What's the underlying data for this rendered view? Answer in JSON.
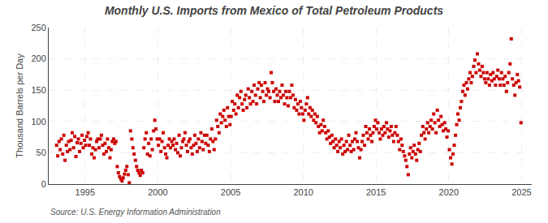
{
  "chart_data": {
    "type": "scatter",
    "title": "Monthly U.S. Imports from Mexico of Total Petroleum Products",
    "ylabel": "Thousand Barrels per Day",
    "source": "Source: U.S. Energy Information Administration",
    "color": "#cc0000",
    "marker": "square",
    "grid": true,
    "xlim": [
      1992.5,
      2025.7
    ],
    "xticks": [
      1995,
      2000,
      2005,
      2010,
      2015,
      2020,
      2025
    ],
    "ylim": [
      0,
      250
    ],
    "yticks": [
      0,
      50,
      100,
      150,
      200,
      250
    ],
    "x": [
      1993.04,
      1993.12,
      1993.21,
      1993.29,
      1993.37,
      1993.46,
      1993.54,
      1993.62,
      1993.71,
      1993.79,
      1993.87,
      1993.96,
      1994.04,
      1994.12,
      1994.21,
      1994.29,
      1994.37,
      1994.46,
      1994.54,
      1994.62,
      1994.71,
      1994.79,
      1994.87,
      1994.96,
      1995.04,
      1995.12,
      1995.21,
      1995.29,
      1995.37,
      1995.46,
      1995.54,
      1995.62,
      1995.71,
      1995.79,
      1995.87,
      1995.96,
      1996.04,
      1996.12,
      1996.21,
      1996.29,
      1996.37,
      1996.46,
      1996.54,
      1996.62,
      1996.71,
      1996.79,
      1996.87,
      1996.96,
      1997.04,
      1997.12,
      1997.21,
      1997.29,
      1997.37,
      1997.46,
      1997.54,
      1997.62,
      1997.71,
      1997.79,
      1997.87,
      1997.96,
      1998.04,
      1998.12,
      1998.21,
      1998.29,
      1998.37,
      1998.46,
      1998.54,
      1998.62,
      1998.71,
      1998.79,
      1998.87,
      1998.96,
      1999.04,
      1999.12,
      1999.21,
      1999.29,
      1999.37,
      1999.46,
      1999.54,
      1999.62,
      1999.71,
      1999.79,
      1999.87,
      1999.96,
      2000.04,
      2000.12,
      2000.21,
      2000.29,
      2000.37,
      2000.46,
      2000.54,
      2000.62,
      2000.71,
      2000.79,
      2000.87,
      2000.96,
      2001.04,
      2001.12,
      2001.21,
      2001.29,
      2001.37,
      2001.46,
      2001.54,
      2001.62,
      2001.71,
      2001.79,
      2001.87,
      2001.96,
      2002.04,
      2002.12,
      2002.21,
      2002.29,
      2002.37,
      2002.46,
      2002.54,
      2002.62,
      2002.71,
      2002.79,
      2002.87,
      2002.96,
      2003.04,
      2003.12,
      2003.21,
      2003.29,
      2003.37,
      2003.46,
      2003.54,
      2003.62,
      2003.71,
      2003.79,
      2003.87,
      2003.96,
      2004.04,
      2004.12,
      2004.21,
      2004.29,
      2004.37,
      2004.46,
      2004.54,
      2004.62,
      2004.71,
      2004.79,
      2004.87,
      2004.96,
      2005.04,
      2005.12,
      2005.21,
      2005.29,
      2005.37,
      2005.46,
      2005.54,
      2005.62,
      2005.71,
      2005.79,
      2005.87,
      2005.96,
      2006.04,
      2006.12,
      2006.21,
      2006.29,
      2006.37,
      2006.46,
      2006.54,
      2006.62,
      2006.71,
      2006.79,
      2006.87,
      2006.96,
      2007.04,
      2007.12,
      2007.21,
      2007.29,
      2007.37,
      2007.46,
      2007.54,
      2007.62,
      2007.71,
      2007.79,
      2007.87,
      2007.96,
      2008.04,
      2008.12,
      2008.21,
      2008.29,
      2008.37,
      2008.46,
      2008.54,
      2008.62,
      2008.71,
      2008.79,
      2008.87,
      2008.96,
      2009.04,
      2009.12,
      2009.21,
      2009.29,
      2009.37,
      2009.46,
      2009.54,
      2009.62,
      2009.71,
      2009.79,
      2009.87,
      2009.96,
      2010.04,
      2010.12,
      2010.21,
      2010.29,
      2010.37,
      2010.46,
      2010.54,
      2010.62,
      2010.71,
      2010.79,
      2010.87,
      2010.96,
      2011.04,
      2011.12,
      2011.21,
      2011.29,
      2011.37,
      2011.46,
      2011.54,
      2011.62,
      2011.71,
      2011.79,
      2011.87,
      2011.96,
      2012.04,
      2012.12,
      2012.21,
      2012.29,
      2012.37,
      2012.46,
      2012.54,
      2012.62,
      2012.71,
      2012.79,
      2012.87,
      2012.96,
      2013.04,
      2013.12,
      2013.21,
      2013.29,
      2013.37,
      2013.46,
      2013.54,
      2013.62,
      2013.71,
      2013.79,
      2013.87,
      2013.96,
      2014.04,
      2014.12,
      2014.21,
      2014.29,
      2014.37,
      2014.46,
      2014.54,
      2014.62,
      2014.71,
      2014.79,
      2014.87,
      2014.96,
      2015.04,
      2015.12,
      2015.21,
      2015.29,
      2015.37,
      2015.46,
      2015.54,
      2015.62,
      2015.71,
      2015.79,
      2015.87,
      2015.96,
      2016.04,
      2016.12,
      2016.21,
      2016.29,
      2016.37,
      2016.46,
      2016.54,
      2016.62,
      2016.71,
      2016.79,
      2016.87,
      2016.96,
      2017.04,
      2017.12,
      2017.21,
      2017.29,
      2017.37,
      2017.46,
      2017.54,
      2017.62,
      2017.71,
      2017.79,
      2017.87,
      2017.96,
      2018.04,
      2018.12,
      2018.21,
      2018.29,
      2018.37,
      2018.46,
      2018.54,
      2018.62,
      2018.71,
      2018.79,
      2018.87,
      2018.96,
      2019.04,
      2019.12,
      2019.21,
      2019.29,
      2019.37,
      2019.46,
      2019.54,
      2019.62,
      2019.71,
      2019.79,
      2019.87,
      2019.96,
      2020.04,
      2020.12,
      2020.21,
      2020.29,
      2020.37,
      2020.46,
      2020.54,
      2020.62,
      2020.71,
      2020.79,
      2020.87,
      2020.96,
      2021.04,
      2021.12,
      2021.21,
      2021.29,
      2021.37,
      2021.46,
      2021.54,
      2021.62,
      2021.71,
      2021.79,
      2021.87,
      2021.96,
      2022.04,
      2022.12,
      2022.21,
      2022.29,
      2022.37,
      2022.46,
      2022.54,
      2022.62,
      2022.71,
      2022.79,
      2022.87,
      2022.96,
      2023.04,
      2023.12,
      2023.21,
      2023.29,
      2023.37,
      2023.46,
      2023.54,
      2023.62,
      2023.71,
      2023.79,
      2023.87,
      2023.96,
      2024.04,
      2024.12,
      2024.21,
      2024.29,
      2024.37,
      2024.46,
      2024.54,
      2024.62,
      2024.71,
      2024.79,
      2024.87,
      2024.96
    ],
    "values": [
      62,
      45,
      68,
      55,
      72,
      48,
      78,
      38,
      62,
      52,
      68,
      55,
      70,
      82,
      58,
      76,
      44,
      66,
      72,
      52,
      65,
      78,
      58,
      70,
      62,
      76,
      82,
      62,
      72,
      48,
      58,
      42,
      55,
      68,
      72,
      58,
      72,
      78,
      62,
      48,
      65,
      52,
      72,
      58,
      42,
      55,
      68,
      72,
      65,
      68,
      28,
      18,
      12,
      8,
      5,
      10,
      16,
      22,
      28,
      15,
      2,
      85,
      72,
      58,
      48,
      38,
      28,
      22,
      18,
      14,
      22,
      18,
      58,
      72,
      82,
      48,
      65,
      45,
      72,
      55,
      85,
      102,
      88,
      72,
      62,
      72,
      52,
      68,
      82,
      58,
      48,
      42,
      62,
      72,
      58,
      68,
      62,
      72,
      55,
      65,
      50,
      78,
      45,
      58,
      68,
      72,
      82,
      62,
      52,
      68,
      72,
      58,
      48,
      62,
      78,
      65,
      52,
      72,
      58,
      82,
      68,
      55,
      78,
      65,
      78,
      62,
      52,
      72,
      88,
      68,
      55,
      72,
      102,
      92,
      82,
      112,
      98,
      108,
      118,
      102,
      92,
      122,
      108,
      95,
      108,
      132,
      118,
      128,
      112,
      142,
      122,
      138,
      148,
      128,
      118,
      135,
      142,
      122,
      152,
      138,
      128,
      148,
      132,
      158,
      142,
      128,
      152,
      162,
      138,
      158,
      148,
      132,
      162,
      142,
      152,
      148,
      138,
      178,
      162,
      148,
      132,
      152,
      142,
      132,
      148,
      138,
      158,
      142,
      128,
      148,
      138,
      125,
      148,
      138,
      158,
      142,
      122,
      135,
      118,
      128,
      112,
      132,
      122,
      112,
      102,
      118,
      128,
      138,
      112,
      122,
      108,
      118,
      102,
      112,
      98,
      108,
      92,
      82,
      95,
      85,
      102,
      92,
      82,
      72,
      85,
      75,
      65,
      78,
      68,
      58,
      72,
      62,
      52,
      68,
      58,
      72,
      48,
      62,
      52,
      68,
      55,
      78,
      62,
      52,
      68,
      55,
      72,
      82,
      68,
      58,
      42,
      55,
      68,
      78,
      62,
      92,
      82,
      72,
      88,
      78,
      68,
      82,
      92,
      102,
      88,
      98,
      82,
      72,
      88,
      78,
      92,
      82,
      98,
      88,
      75,
      85,
      92,
      78,
      68,
      82,
      92,
      78,
      68,
      55,
      72,
      62,
      52,
      45,
      38,
      28,
      15,
      48,
      58,
      42,
      52,
      62,
      48,
      38,
      55,
      65,
      52,
      78,
      92,
      82,
      72,
      88,
      98,
      82,
      92,
      102,
      88,
      112,
      98,
      82,
      118,
      102,
      92,
      108,
      95,
      85,
      98,
      88,
      75,
      85,
      55,
      42,
      32,
      48,
      62,
      78,
      95,
      112,
      102,
      122,
      132,
      148,
      158,
      142,
      162,
      152,
      168,
      178,
      162,
      172,
      188,
      198,
      178,
      208,
      192,
      182,
      172,
      188,
      178,
      168,
      162,
      178,
      168,
      158,
      175,
      165,
      178,
      168,
      158,
      172,
      182,
      168,
      158,
      178,
      168,
      158,
      172,
      148,
      162,
      178,
      192,
      232,
      168,
      158,
      142,
      162,
      175,
      165,
      155,
      98
    ]
  }
}
